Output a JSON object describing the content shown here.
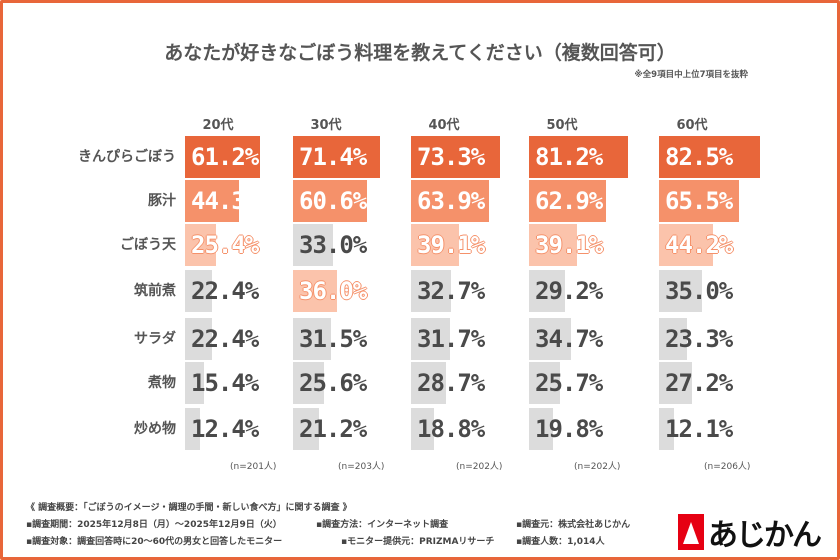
{
  "chart_data": {
    "type": "bar",
    "title": "あなたが好きなごぼう料理を教えてください（複数回答可）",
    "note": "※全9項目中上位7項目を抜粋",
    "categories": [
      "きんぴらごぼう",
      "豚汁",
      "ごぼう天",
      "筑前煮",
      "サラダ",
      "煮物",
      "炒め物"
    ],
    "series": [
      {
        "name": "20代",
        "labels": [
          "61.2%",
          "44.3",
          "25.4%",
          "22.4%",
          "22.4%",
          "15.4%",
          "12.4%"
        ],
        "values": [
          61.2,
          44.3,
          25.4,
          22.4,
          22.4,
          15.4,
          12.4
        ],
        "n": "(n=201人)"
      },
      {
        "name": "30代",
        "labels": [
          "71.4%",
          "60.6%",
          "33.0%",
          "36.0%",
          "31.5%",
          "25.6%",
          "21.2%"
        ],
        "values": [
          71.4,
          60.6,
          33.0,
          36.0,
          31.5,
          25.6,
          21.2
        ],
        "n": "(n=203人)"
      },
      {
        "name": "40代",
        "labels": [
          "73.3%",
          "63.9%",
          "39.1%",
          "32.7%",
          "31.7%",
          "28.7%",
          "18.8%"
        ],
        "values": [
          73.3,
          63.9,
          39.1,
          32.7,
          31.7,
          28.7,
          18.8
        ],
        "n": "(n=202人)"
      },
      {
        "name": "50代",
        "labels": [
          "81.2%",
          "62.9%",
          "39.1%",
          "29.2%",
          "34.7%",
          "25.7%",
          "19.8%"
        ],
        "values": [
          81.2,
          62.9,
          39.1,
          29.2,
          34.7,
          25.7,
          19.8
        ],
        "n": "(n=202人)"
      },
      {
        "name": "60代",
        "labels": [
          "82.5%",
          "65.5%",
          "44.2%",
          "35.0%",
          "23.3%",
          "27.2%",
          "12.1%"
        ],
        "values": [
          82.5,
          65.5,
          44.2,
          35.0,
          23.3,
          27.2,
          12.1
        ],
        "n": "(n=206人)"
      }
    ],
    "colors": {
      "rank1": "#e8663a",
      "rank2": "#f5916a",
      "rank3": "#fbc3ab",
      "other": "#dcdcdc",
      "accent": "#e8663a"
    }
  },
  "footer": {
    "line1": "《 調査概要：「ごぼうのイメージ・調理の手間・新しい食べ方」に関する調査 》",
    "period": "▪調査期間：2025年12月8日（月）～2025年12月9日（火）",
    "method": "▪調査方法：インターネット調査",
    "source": "▪調査元：株式会社あじかん",
    "target": "▪調査対象：調査回答時に20～60代の男女と回答したモニター",
    "provider": "▪モニター提供元：PRIZMAリサーチ",
    "count": "▪調査人数：1,014人"
  },
  "logo": {
    "text": "あじかん"
  }
}
